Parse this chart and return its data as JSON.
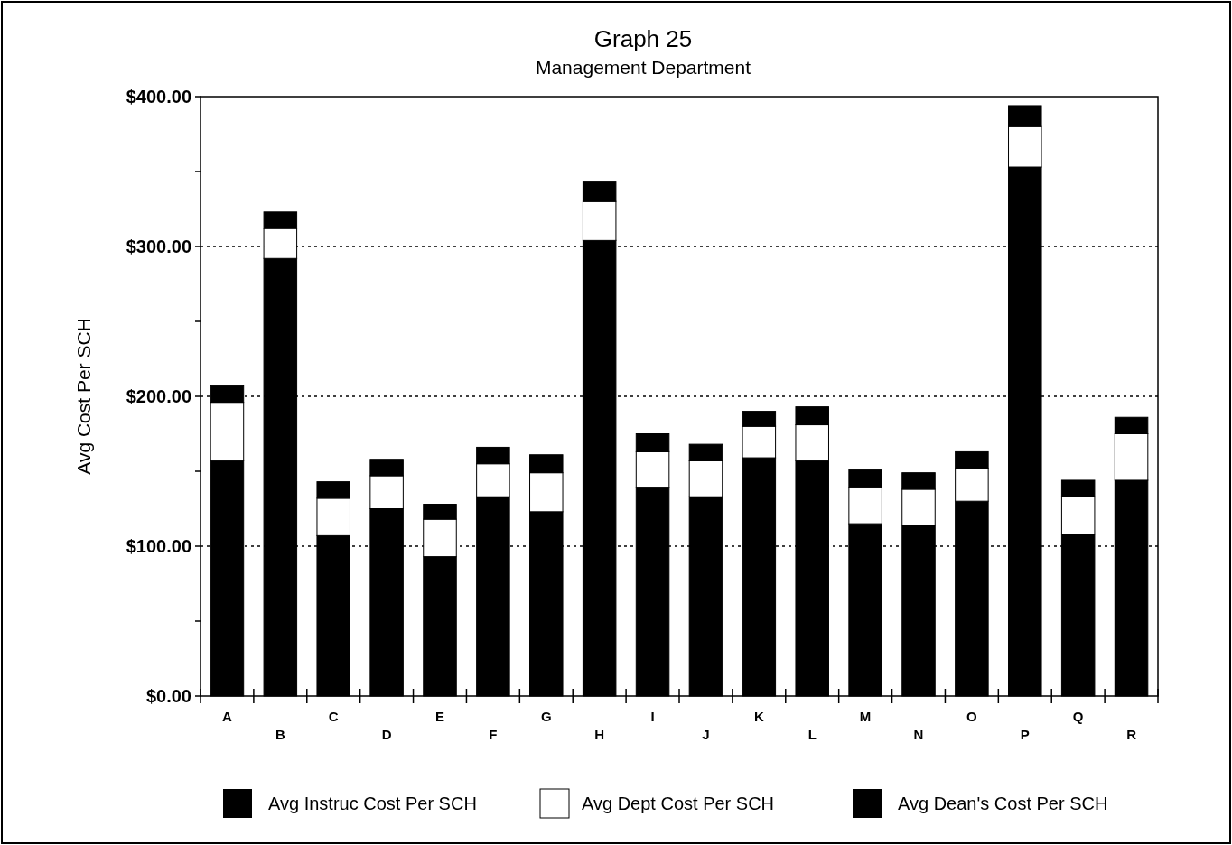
{
  "chart_data": {
    "type": "bar",
    "title": "Graph 25",
    "subtitle": "Management Department",
    "ylabel": "Avg Cost Per SCH",
    "stacked": true,
    "categories": [
      "A",
      "B",
      "C",
      "D",
      "E",
      "F",
      "G",
      "H",
      "I",
      "J",
      "K",
      "L",
      "M",
      "N",
      "O",
      "P",
      "Q",
      "R"
    ],
    "series": [
      {
        "name": "Avg Instruc Cost Per SCH",
        "color": "#000000",
        "values": [
          157,
          292,
          107,
          125,
          93,
          133,
          123,
          304,
          139,
          133,
          159,
          157,
          115,
          114,
          130,
          353,
          108,
          144
        ]
      },
      {
        "name": "Avg Dept Cost Per SCH",
        "color": "#ffffff",
        "values": [
          39,
          20,
          25,
          22,
          25,
          22,
          26,
          26,
          24,
          24,
          21,
          24,
          24,
          24,
          22,
          27,
          25,
          31
        ]
      },
      {
        "name": "Avg Dean's Cost Per SCH",
        "color": "#000000",
        "values": [
          11,
          11,
          11,
          11,
          10,
          11,
          12,
          13,
          12,
          11,
          10,
          12,
          12,
          11,
          11,
          14,
          11,
          11
        ]
      }
    ],
    "ylim": [
      0,
      400
    ],
    "yticks": [
      {
        "value": 0,
        "label": "$0.00"
      },
      {
        "value": 50,
        "label": null
      },
      {
        "value": 100,
        "label": "$100.00"
      },
      {
        "value": 150,
        "label": null
      },
      {
        "value": 200,
        "label": "$200.00"
      },
      {
        "value": 250,
        "label": null
      },
      {
        "value": 300,
        "label": "$300.00"
      },
      {
        "value": 350,
        "label": null
      },
      {
        "value": 400,
        "label": "$400.00"
      }
    ],
    "grid": "y",
    "line_style": "dotted",
    "legend": "bottom"
  }
}
